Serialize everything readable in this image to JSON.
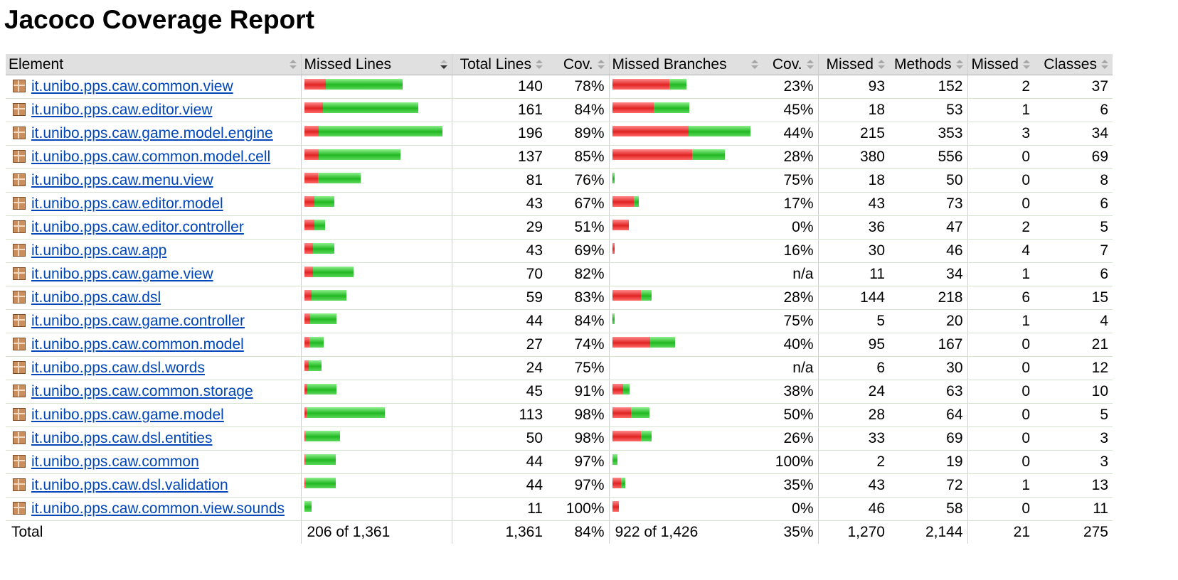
{
  "title": "Jacoco Coverage Report",
  "colors": {
    "missed": "#e02424",
    "covered": "#22b822",
    "link": "#0046b8",
    "header_bg": "#e0e0e0"
  },
  "icons": {
    "package": "package-icon",
    "sort": "sort-arrows-icon"
  },
  "columns": [
    "Element",
    "Missed Lines",
    "Total Lines",
    "Cov.",
    "Missed Branches",
    "Cov.",
    "Missed",
    "Methods",
    "Missed",
    "Classes"
  ],
  "rows": [
    {
      "name": "it.unibo.pps.caw.common.view",
      "total_lines": "140",
      "line_cov": "78%",
      "br_cov": "23%",
      "missed_methods": "93",
      "methods": "152",
      "missed_classes": "2",
      "classes": "37",
      "line_bar": [
        30,
        108
      ],
      "br_bar": [
        80,
        24
      ]
    },
    {
      "name": "it.unibo.pps.caw.editor.view",
      "total_lines": "161",
      "line_cov": "84%",
      "br_cov": "45%",
      "missed_methods": "18",
      "methods": "53",
      "missed_classes": "1",
      "classes": "6",
      "line_bar": [
        26,
        134
      ],
      "br_bar": [
        58,
        50
      ]
    },
    {
      "name": "it.unibo.pps.caw.game.model.engine",
      "total_lines": "196",
      "line_cov": "89%",
      "br_cov": "44%",
      "missed_methods": "215",
      "methods": "353",
      "missed_classes": "3",
      "classes": "34",
      "line_bar": [
        20,
        174
      ],
      "br_bar": [
        107,
        87
      ]
    },
    {
      "name": "it.unibo.pps.caw.common.model.cell",
      "total_lines": "137",
      "line_cov": "85%",
      "br_cov": "28%",
      "missed_methods": "380",
      "methods": "556",
      "missed_classes": "0",
      "classes": "69",
      "line_bar": [
        20,
        115
      ],
      "br_bar": [
        112,
        46
      ]
    },
    {
      "name": "it.unibo.pps.caw.menu.view",
      "total_lines": "81",
      "line_cov": "76%",
      "br_cov": "75%",
      "missed_methods": "18",
      "methods": "50",
      "missed_classes": "0",
      "classes": "8",
      "line_bar": [
        19,
        60
      ],
      "br_bar": [
        1,
        2
      ]
    },
    {
      "name": "it.unibo.pps.caw.editor.model",
      "total_lines": "43",
      "line_cov": "67%",
      "br_cov": "17%",
      "missed_methods": "43",
      "methods": "73",
      "missed_classes": "0",
      "classes": "6",
      "line_bar": [
        14,
        28
      ],
      "br_bar": [
        30,
        7
      ]
    },
    {
      "name": "it.unibo.pps.caw.editor.controller",
      "total_lines": "29",
      "line_cov": "51%",
      "br_cov": "0%",
      "missed_methods": "36",
      "methods": "47",
      "missed_classes": "2",
      "classes": "5",
      "line_bar": [
        14,
        15
      ],
      "br_bar": [
        23,
        0
      ]
    },
    {
      "name": "it.unibo.pps.caw.app",
      "total_lines": "43",
      "line_cov": "69%",
      "br_cov": "16%",
      "missed_methods": "30",
      "methods": "46",
      "missed_classes": "4",
      "classes": "7",
      "line_bar": [
        12,
        30
      ],
      "br_bar": [
        3,
        0
      ]
    },
    {
      "name": "it.unibo.pps.caw.game.view",
      "total_lines": "70",
      "line_cov": "82%",
      "br_cov": "n/a",
      "missed_methods": "11",
      "methods": "34",
      "missed_classes": "1",
      "classes": "6",
      "line_bar": [
        12,
        57
      ],
      "br_bar": [
        0,
        0
      ]
    },
    {
      "name": "it.unibo.pps.caw.dsl",
      "total_lines": "59",
      "line_cov": "83%",
      "br_cov": "28%",
      "missed_methods": "144",
      "methods": "218",
      "missed_classes": "6",
      "classes": "15",
      "line_bar": [
        10,
        49
      ],
      "br_bar": [
        40,
        15
      ]
    },
    {
      "name": "it.unibo.pps.caw.game.controller",
      "total_lines": "44",
      "line_cov": "84%",
      "br_cov": "75%",
      "missed_methods": "5",
      "methods": "20",
      "missed_classes": "1",
      "classes": "4",
      "line_bar": [
        8,
        37
      ],
      "br_bar": [
        1,
        2
      ]
    },
    {
      "name": "it.unibo.pps.caw.common.model",
      "total_lines": "27",
      "line_cov": "74%",
      "br_cov": "40%",
      "missed_methods": "95",
      "methods": "167",
      "missed_classes": "0",
      "classes": "21",
      "line_bar": [
        7,
        20
      ],
      "br_bar": [
        53,
        35
      ]
    },
    {
      "name": "it.unibo.pps.caw.dsl.words",
      "total_lines": "24",
      "line_cov": "75%",
      "br_cov": "n/a",
      "missed_methods": "6",
      "methods": "30",
      "missed_classes": "0",
      "classes": "12",
      "line_bar": [
        6,
        18
      ],
      "br_bar": [
        0,
        0
      ]
    },
    {
      "name": "it.unibo.pps.caw.common.storage",
      "total_lines": "45",
      "line_cov": "91%",
      "br_cov": "38%",
      "missed_methods": "24",
      "methods": "63",
      "missed_classes": "0",
      "classes": "10",
      "line_bar": [
        4,
        41
      ],
      "br_bar": [
        15,
        9
      ]
    },
    {
      "name": "it.unibo.pps.caw.game.model",
      "total_lines": "113",
      "line_cov": "98%",
      "br_cov": "50%",
      "missed_methods": "28",
      "methods": "64",
      "missed_classes": "0",
      "classes": "5",
      "line_bar": [
        3,
        110
      ],
      "br_bar": [
        26,
        26
      ]
    },
    {
      "name": "it.unibo.pps.caw.dsl.entities",
      "total_lines": "50",
      "line_cov": "98%",
      "br_cov": "26%",
      "missed_methods": "33",
      "methods": "69",
      "missed_classes": "0",
      "classes": "3",
      "line_bar": [
        1,
        49
      ],
      "br_bar": [
        40,
        15
      ]
    },
    {
      "name": "it.unibo.pps.caw.common",
      "total_lines": "44",
      "line_cov": "97%",
      "br_cov": "100%",
      "missed_methods": "2",
      "methods": "19",
      "missed_classes": "0",
      "classes": "3",
      "line_bar": [
        1,
        43
      ],
      "br_bar": [
        0,
        7
      ]
    },
    {
      "name": "it.unibo.pps.caw.dsl.validation",
      "total_lines": "44",
      "line_cov": "97%",
      "br_cov": "35%",
      "missed_methods": "43",
      "methods": "72",
      "missed_classes": "1",
      "classes": "13",
      "line_bar": [
        1,
        43
      ],
      "br_bar": [
        12,
        6
      ]
    },
    {
      "name": "it.unibo.pps.caw.common.view.sounds",
      "total_lines": "11",
      "line_cov": "100%",
      "br_cov": "0%",
      "missed_methods": "46",
      "methods": "58",
      "missed_classes": "0",
      "classes": "11",
      "line_bar": [
        0,
        10
      ],
      "br_bar": [
        9,
        0
      ]
    }
  ],
  "total": {
    "label": "Total",
    "missed_lines": "206 of 1,361",
    "total_lines": "1,361",
    "line_cov": "84%",
    "missed_branches": "922 of 1,426",
    "br_cov": "35%",
    "missed_methods": "1,270",
    "methods": "2,144",
    "missed_classes": "21",
    "classes": "275"
  }
}
